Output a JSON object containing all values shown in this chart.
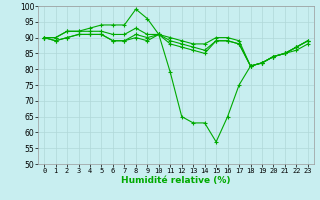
{
  "xlabel": "Humidité relative (%)",
  "xlim": [
    -0.5,
    23.5
  ],
  "ylim": [
    50,
    100
  ],
  "yticks": [
    50,
    55,
    60,
    65,
    70,
    75,
    80,
    85,
    90,
    95,
    100
  ],
  "xticks": [
    0,
    1,
    2,
    3,
    4,
    5,
    6,
    7,
    8,
    9,
    10,
    11,
    12,
    13,
    14,
    15,
    16,
    17,
    18,
    19,
    20,
    21,
    22,
    23
  ],
  "bg_color": "#c8eef0",
  "grid_color": "#b0d8d8",
  "line_color": "#00aa00",
  "lines": [
    [
      90,
      90,
      92,
      92,
      92,
      92,
      91,
      91,
      93,
      91,
      91,
      90,
      89,
      88,
      88,
      90,
      90,
      89,
      81,
      82,
      84,
      85,
      87,
      89
    ],
    [
      90,
      90,
      92,
      92,
      93,
      94,
      94,
      94,
      99,
      96,
      91,
      79,
      65,
      63,
      63,
      57,
      65,
      75,
      81,
      82,
      84,
      85,
      87,
      89
    ],
    [
      90,
      89,
      90,
      91,
      91,
      91,
      89,
      89,
      90,
      89,
      91,
      88,
      87,
      86,
      85,
      89,
      89,
      88,
      81,
      82,
      84,
      85,
      87,
      89
    ],
    [
      90,
      89,
      90,
      91,
      91,
      91,
      89,
      89,
      91,
      90,
      91,
      89,
      88,
      87,
      86,
      89,
      89,
      88,
      81,
      82,
      84,
      85,
      86,
      88
    ]
  ],
  "marker": "+",
  "markersize": 3.5,
  "linewidth": 0.8,
  "tick_fontsize": 5.0,
  "xlabel_fontsize": 6.5
}
